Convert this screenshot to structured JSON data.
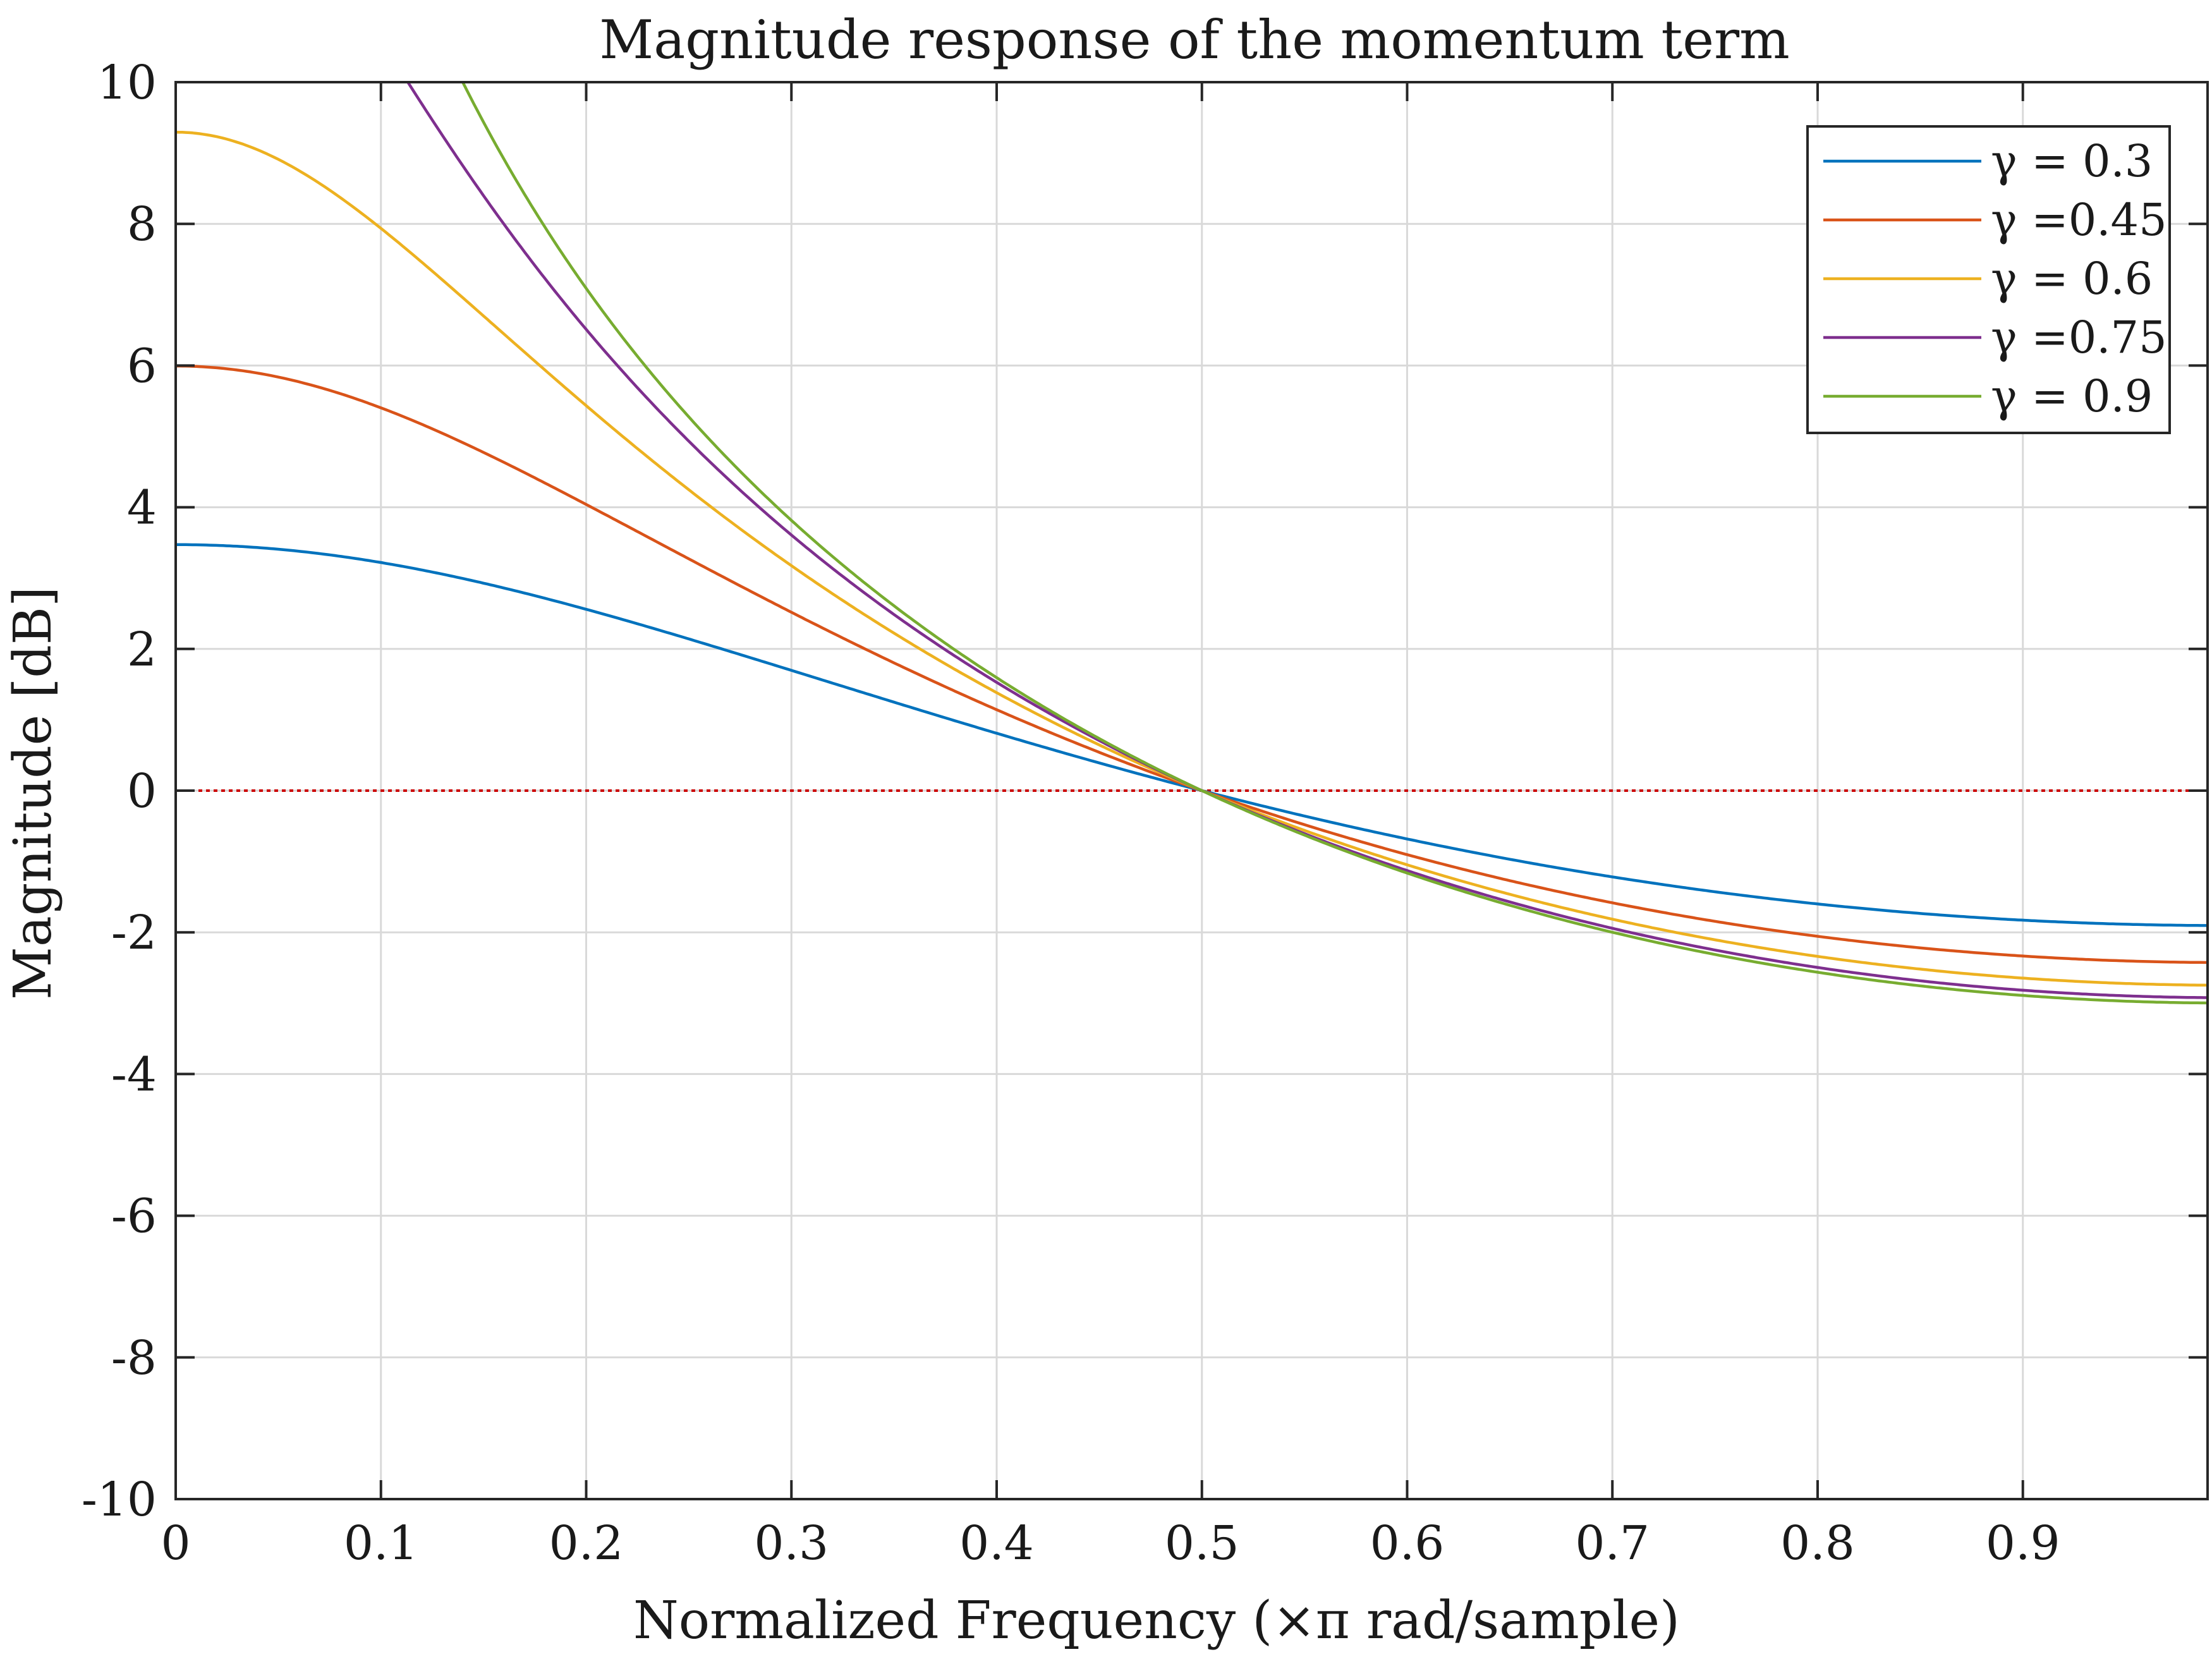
{
  "chart_data": {
    "type": "line",
    "title": "Magnitude response of the momentum term",
    "xlabel": "Normalized Frequency (×π rad/sample)",
    "ylabel": "Magnitude [dB]",
    "xlim": [
      0,
      0.99
    ],
    "ylim": [
      -10,
      10
    ],
    "xticks": [
      0,
      0.1,
      0.2,
      0.3,
      0.4,
      0.5,
      0.6,
      0.7,
      0.8,
      0.9
    ],
    "xtick_labels": [
      "0",
      "0.1",
      "0.2",
      "0.3",
      "0.4",
      "0.5",
      "0.6",
      "0.7",
      "0.8",
      "0.9"
    ],
    "yticks": [
      -10,
      -8,
      -6,
      -4,
      -2,
      0,
      2,
      4,
      6,
      8,
      10
    ],
    "ytick_labels": [
      "-10",
      "-8",
      "-6",
      "-4",
      "-2",
      "0",
      "2",
      "4",
      "6",
      "8",
      "10"
    ],
    "grid": true,
    "legend_position": "top-right",
    "reference_line": {
      "y": 0,
      "color": "#cc0000",
      "style": "dotted"
    },
    "series": [
      {
        "name": "γ = 0.3",
        "gamma": 0.3,
        "color": "#0072bd"
      },
      {
        "name": "γ =0.45",
        "gamma": 0.45,
        "color": "#d95319"
      },
      {
        "name": "γ = 0.6",
        "gamma": 0.6,
        "color": "#edb120"
      },
      {
        "name": "γ =0.75",
        "gamma": 0.75,
        "color": "#7e2f8e"
      },
      {
        "name": "γ = 0.9",
        "gamma": 0.9,
        "color": "#77ac30"
      }
    ]
  }
}
